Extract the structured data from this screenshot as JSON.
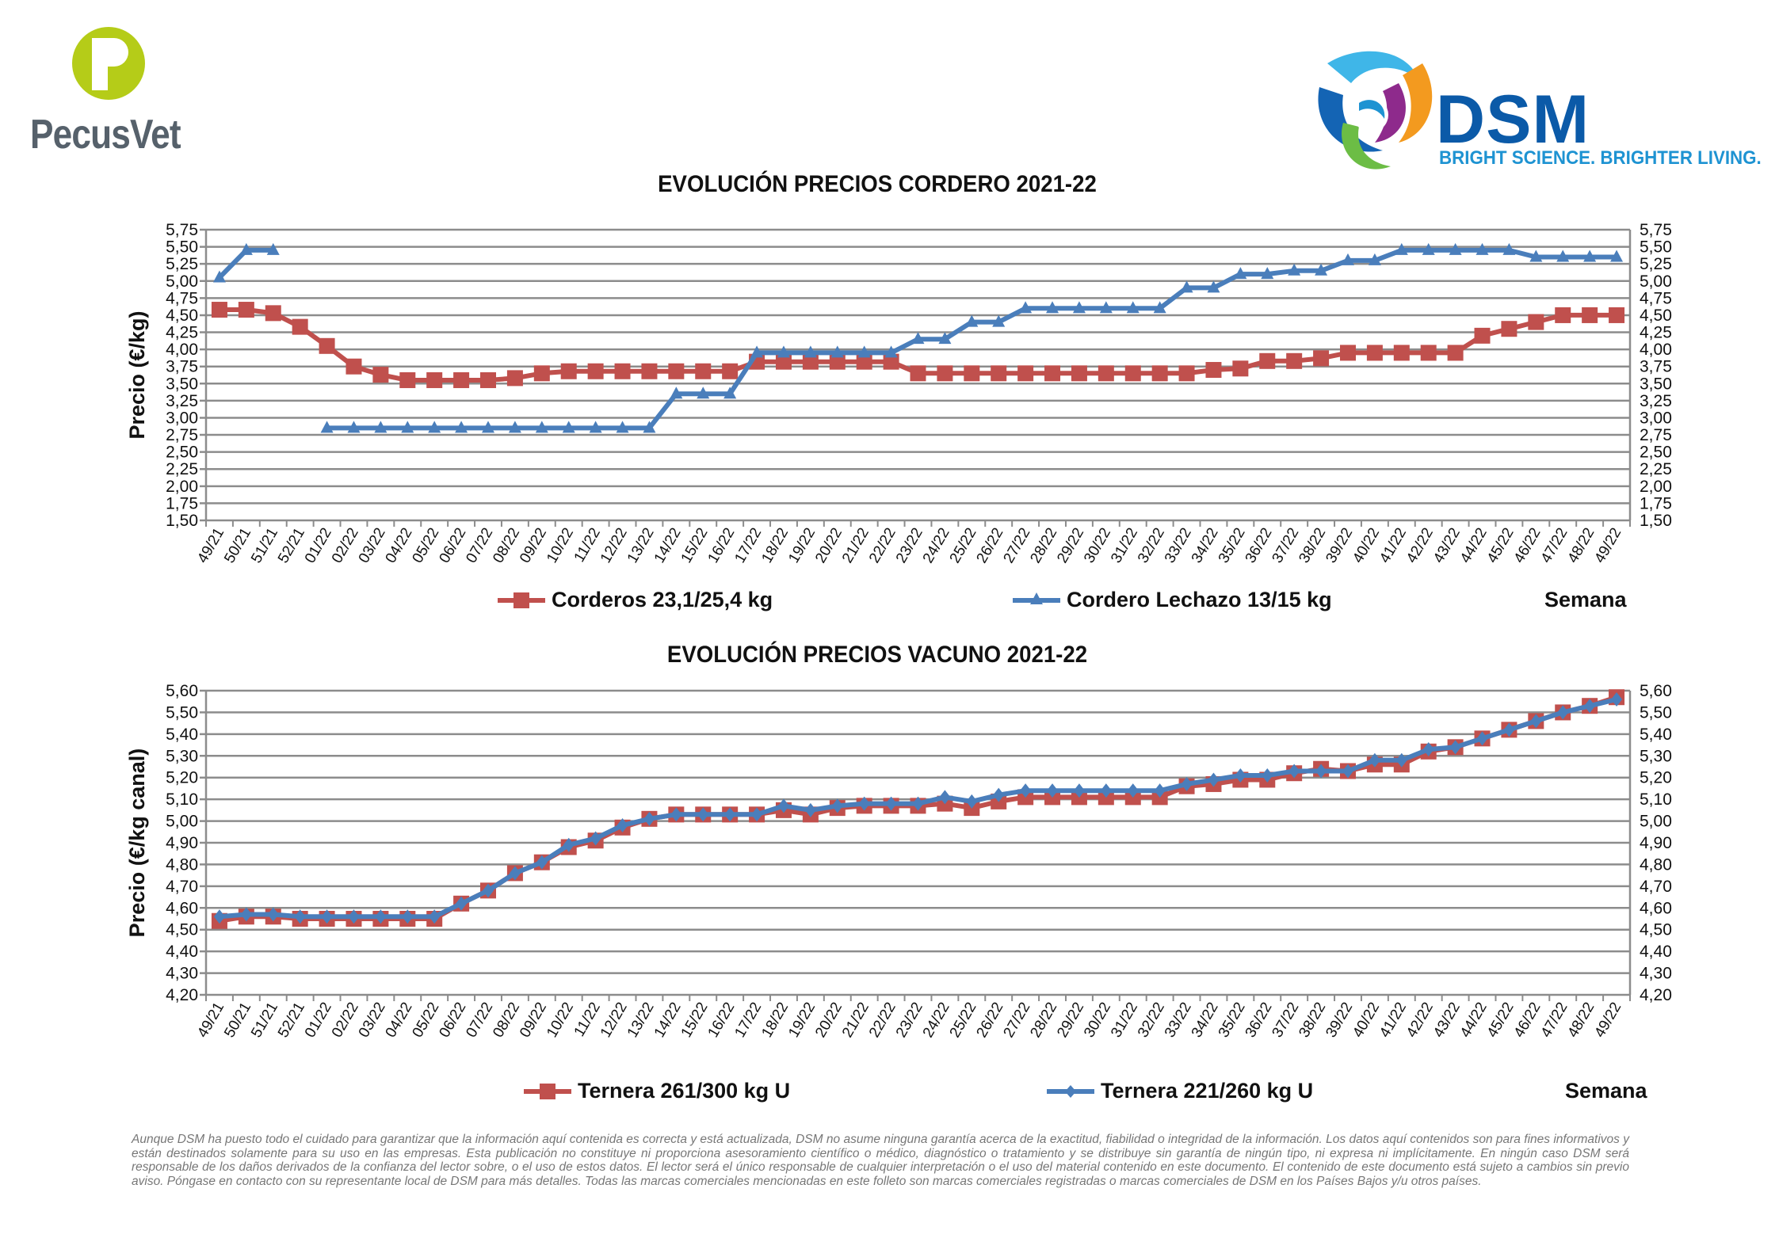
{
  "header": {
    "left_logo": "PecusVet",
    "right_logo_name": "DSM",
    "right_logo_tagline": "BRIGHT SCIENCE. BRIGHTER LIVING."
  },
  "colors": {
    "red": "#c0504d",
    "blue": "#4a7ebb",
    "grid": "#8c8c8c"
  },
  "semana_label": "Semana",
  "chart_data": [
    {
      "type": "line",
      "title": "EVOLUCIÓN PRECIOS CORDERO 2021-22",
      "xlabel": "Semana",
      "ylabel": "Precio (€/kg)",
      "ylim": [
        1.5,
        5.75
      ],
      "ystep": 0.25,
      "secondary_axis": true,
      "grid": true,
      "legend": "bottom",
      "categories": [
        "49/21",
        "50/21",
        "51/21",
        "52/21",
        "01/22",
        "02/22",
        "03/22",
        "04/22",
        "05/22",
        "06/22",
        "07/22",
        "08/22",
        "09/22",
        "10/22",
        "11/22",
        "12/22",
        "13/22",
        "14/22",
        "15/22",
        "16/22",
        "17/22",
        "18/22",
        "19/22",
        "20/22",
        "21/22",
        "22/22",
        "23/22",
        "24/22",
        "25/22",
        "26/22",
        "27/22",
        "28/22",
        "29/22",
        "30/22",
        "31/22",
        "32/22",
        "33/22",
        "34/22",
        "35/22",
        "36/22",
        "37/22",
        "38/22",
        "39/22",
        "40/22",
        "41/22",
        "42/22",
        "43/22",
        "44/22",
        "45/22",
        "46/22",
        "47/22",
        "48/22",
        "49/22"
      ],
      "series": [
        {
          "name": "Corderos 23,1/25,4 kg",
          "color": "#c0504d",
          "marker": "square",
          "values": [
            4.58,
            4.58,
            4.53,
            4.33,
            4.05,
            3.75,
            3.63,
            3.55,
            3.55,
            3.55,
            3.55,
            3.58,
            3.65,
            3.68,
            3.68,
            3.68,
            3.68,
            3.68,
            3.68,
            3.68,
            3.82,
            3.82,
            3.82,
            3.82,
            3.82,
            3.82,
            3.65,
            3.65,
            3.65,
            3.65,
            3.65,
            3.65,
            3.65,
            3.65,
            3.65,
            3.65,
            3.65,
            3.7,
            3.72,
            3.83,
            3.83,
            3.87,
            3.95,
            3.95,
            3.95,
            3.95,
            3.95,
            4.2,
            4.3,
            4.4,
            4.5,
            4.5,
            4.5
          ]
        },
        {
          "name": "Cordero Lechazo 13/15 kg",
          "color": "#4a7ebb",
          "marker": "triangle",
          "values": [
            5.05,
            5.45,
            5.45,
            null,
            2.85,
            2.85,
            2.85,
            2.85,
            2.85,
            2.85,
            2.85,
            2.85,
            2.85,
            2.85,
            2.85,
            2.85,
            2.85,
            3.35,
            3.35,
            3.35,
            3.95,
            3.95,
            3.95,
            3.95,
            3.95,
            3.95,
            4.15,
            4.15,
            4.4,
            4.4,
            4.6,
            4.6,
            4.6,
            4.6,
            4.6,
            4.6,
            4.9,
            4.9,
            5.1,
            5.1,
            5.15,
            5.15,
            5.3,
            5.3,
            5.45,
            5.45,
            5.45,
            5.45,
            5.45,
            5.35,
            5.35,
            5.35,
            5.35
          ]
        }
      ]
    },
    {
      "type": "line",
      "title": "EVOLUCIÓN PRECIOS VACUNO 2021-22",
      "xlabel": "Semana",
      "ylabel": "Precio (€/kg canal)",
      "ylim": [
        4.2,
        5.6
      ],
      "ystep": 0.1,
      "secondary_axis": true,
      "grid": true,
      "legend": "bottom",
      "categories": [
        "49/21",
        "50/21",
        "51/21",
        "52/21",
        "01/22",
        "02/22",
        "03/22",
        "04/22",
        "05/22",
        "06/22",
        "07/22",
        "08/22",
        "09/22",
        "10/22",
        "11/22",
        "12/22",
        "13/22",
        "14/22",
        "15/22",
        "16/22",
        "17/22",
        "18/22",
        "19/22",
        "20/22",
        "21/22",
        "22/22",
        "23/22",
        "24/22",
        "25/22",
        "26/22",
        "27/22",
        "28/22",
        "29/22",
        "30/22",
        "31/22",
        "32/22",
        "33/22",
        "34/22",
        "35/22",
        "36/22",
        "37/22",
        "38/22",
        "39/22",
        "40/22",
        "41/22",
        "42/22",
        "43/22",
        "44/22",
        "45/22",
        "46/22",
        "47/22",
        "48/22",
        "49/22"
      ],
      "series": [
        {
          "name": "Ternera 261/300 kg U",
          "color": "#c0504d",
          "marker": "square",
          "values": [
            4.54,
            4.56,
            4.56,
            4.55,
            4.55,
            4.55,
            4.55,
            4.55,
            4.55,
            4.62,
            4.68,
            4.76,
            4.81,
            4.88,
            4.91,
            4.97,
            5.01,
            5.03,
            5.03,
            5.03,
            5.03,
            5.05,
            5.03,
            5.06,
            5.07,
            5.07,
            5.07,
            5.08,
            5.06,
            5.09,
            5.11,
            5.11,
            5.11,
            5.11,
            5.11,
            5.11,
            5.16,
            5.17,
            5.19,
            5.19,
            5.22,
            5.24,
            5.23,
            5.26,
            5.26,
            5.32,
            5.34,
            5.38,
            5.42,
            5.46,
            5.5,
            5.53,
            5.57
          ]
        },
        {
          "name": "Ternera 221/260 kg U",
          "color": "#4a7ebb",
          "marker": "diamond",
          "values": [
            4.56,
            4.57,
            4.57,
            4.56,
            4.56,
            4.56,
            4.56,
            4.56,
            4.56,
            4.62,
            4.68,
            4.76,
            4.81,
            4.89,
            4.92,
            4.98,
            5.01,
            5.03,
            5.03,
            5.03,
            5.03,
            5.07,
            5.05,
            5.07,
            5.08,
            5.08,
            5.08,
            5.11,
            5.09,
            5.12,
            5.14,
            5.14,
            5.14,
            5.14,
            5.14,
            5.14,
            5.17,
            5.19,
            5.21,
            5.21,
            5.23,
            5.23,
            5.23,
            5.28,
            5.28,
            5.33,
            5.34,
            5.38,
            5.42,
            5.46,
            5.5,
            5.53,
            5.56
          ]
        }
      ]
    }
  ],
  "disclaimer": "Aunque DSM ha puesto todo el cuidado para garantizar que la información aquí contenida es correcta y está actualizada, DSM no asume ninguna garantía acerca de la exactitud, fiabilidad o integridad de la información. Los datos aquí contenidos son para fines informativos y están destinados solamente para su uso en las empresas. Esta publicación no constituye ni proporciona asesoramiento científico o médico, diagnóstico o tratamiento y se distribuye sin garantía de ningún tipo, ni expresa ni implícitamente. En ningún caso DSM será responsable de los daños derivados de la confianza del lector sobre, o el uso de estos datos. El lector será el único responsable de cualquier interpretación o el uso del material contenido en este documento. El contenido de este documento está sujeto a cambios sin previo aviso. Póngase en contacto con su representante local de DSM para más detalles. Todas las marcas comerciales mencionadas en este folleto son marcas comerciales registradas o marcas comerciales de DSM en los Países Bajos y/u otros países."
}
